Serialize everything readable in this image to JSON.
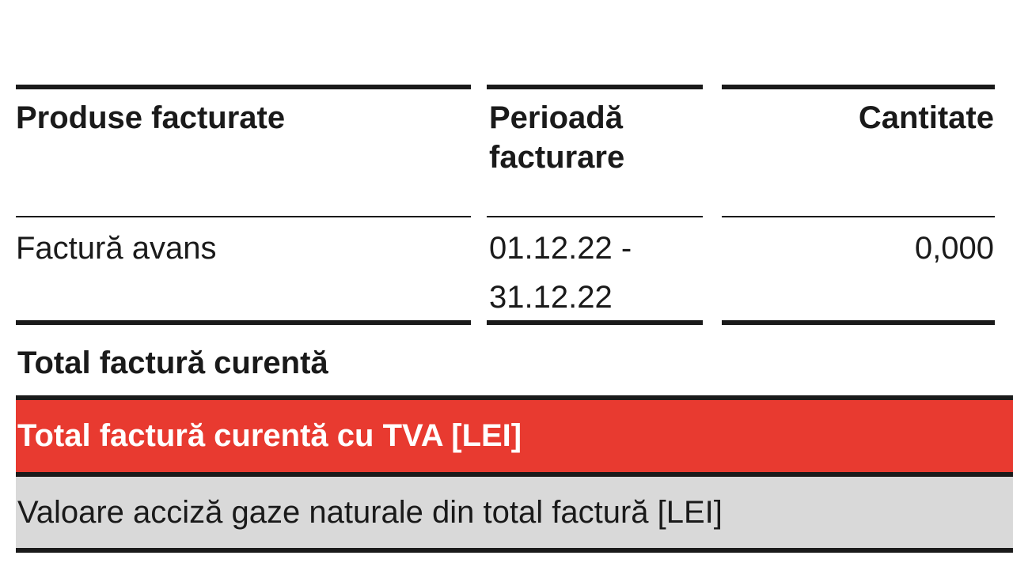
{
  "table": {
    "headers": [
      "Produse facturate",
      "Perioadă facturare",
      "Cantitate"
    ],
    "rows": [
      [
        "Factură avans",
        "01.12.22 - 31.12.22",
        "0,000"
      ]
    ]
  },
  "totals": {
    "current": "Total factură curentă",
    "with_vat": "Total factură curentă cu TVA [LEI]",
    "excise": "Valoare acciză gaze naturale din total factură [LEI]"
  }
}
